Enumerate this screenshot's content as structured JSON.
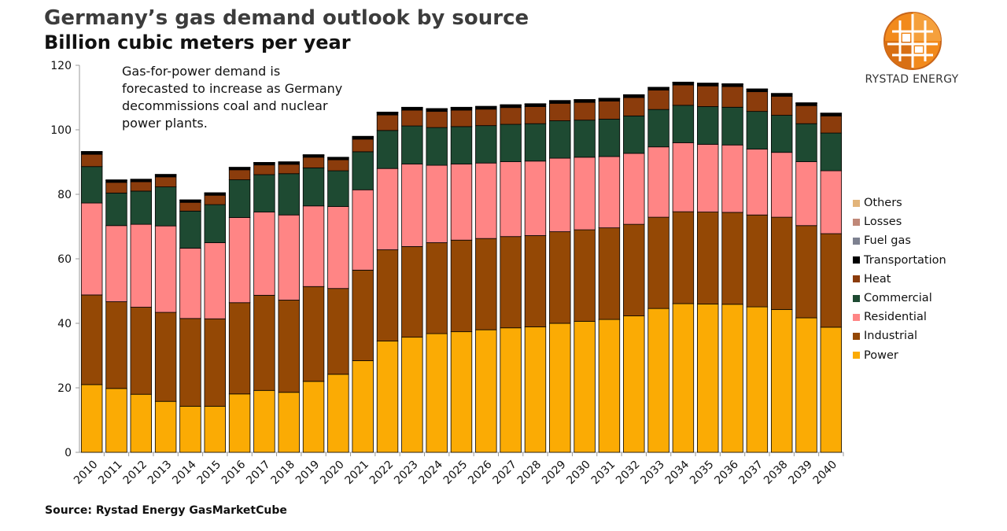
{
  "title": "Germany’s gas demand outlook by source",
  "subtitle": "Billion cubic meters per year",
  "annotation": "Gas-for-power demand is forecasted to increase as Germany decommissions coal and nuclear power plants.",
  "source": "Source: Rystad Energy GasMarketCube",
  "brand": {
    "name": "RYSTAD ENERGY",
    "logo_icon": "rystad-energy-logo-icon"
  },
  "colors": {
    "Power": "#fbab04",
    "Industrial": "#944805",
    "Residential": "#ff8585",
    "Commercial": "#1e4a32",
    "Heat": "#8b3c0c",
    "Transportation": "#000000",
    "Fuel gas": "#7d8190",
    "Losses": "#c08878",
    "Others": "#e2b47a"
  },
  "chart_data": {
    "type": "bar",
    "stacked": true,
    "categories": [
      "2010",
      "2011",
      "2012",
      "2013",
      "2014",
      "2015",
      "2016",
      "2017",
      "2018",
      "2019",
      "2020",
      "2021",
      "2022",
      "2023",
      "2024",
      "2025",
      "2026",
      "2027",
      "2028",
      "2029",
      "2030",
      "2031",
      "2032",
      "2033",
      "2034",
      "2035",
      "2036",
      "2037",
      "2038",
      "2039",
      "2040"
    ],
    "ylim": [
      0,
      120
    ],
    "yticks": [
      0,
      20,
      40,
      60,
      80,
      100,
      120
    ],
    "grid": false,
    "legend_position": "right",
    "series": [
      {
        "name": "Power",
        "values": [
          21.0,
          19.8,
          18.0,
          15.8,
          14.3,
          14.3,
          18.1,
          19.2,
          18.6,
          22.0,
          24.2,
          28.4,
          34.5,
          35.7,
          36.8,
          37.4,
          38.0,
          38.6,
          38.9,
          40.0,
          40.6,
          41.2,
          42.3,
          44.6,
          46.1,
          46.0,
          45.9,
          45.1,
          44.3,
          41.7,
          38.8
        ]
      },
      {
        "name": "Industrial",
        "values": [
          27.8,
          26.9,
          27.0,
          27.6,
          27.2,
          27.1,
          28.3,
          29.5,
          28.6,
          29.4,
          26.6,
          28.1,
          28.3,
          28.1,
          28.2,
          28.4,
          28.3,
          28.3,
          28.3,
          28.4,
          28.4,
          28.4,
          28.4,
          28.3,
          28.5,
          28.5,
          28.5,
          28.5,
          28.6,
          28.6,
          29.0
        ]
      },
      {
        "name": "Residential",
        "values": [
          28.5,
          23.6,
          25.7,
          26.8,
          21.8,
          23.6,
          26.4,
          25.8,
          26.4,
          25.0,
          25.4,
          24.9,
          25.2,
          25.6,
          24.0,
          23.6,
          23.4,
          23.2,
          23.1,
          22.8,
          22.5,
          22.1,
          22.0,
          21.8,
          21.4,
          21.0,
          20.9,
          20.4,
          20.1,
          19.8,
          19.5
        ]
      },
      {
        "name": "Commercial",
        "values": [
          11.3,
          10.1,
          10.3,
          12.1,
          11.5,
          11.8,
          11.7,
          11.6,
          12.8,
          11.8,
          11.1,
          11.8,
          11.8,
          11.8,
          11.7,
          11.6,
          11.6,
          11.6,
          11.6,
          11.6,
          11.5,
          11.6,
          11.6,
          11.6,
          11.6,
          11.7,
          11.7,
          11.7,
          11.5,
          11.8,
          11.7
        ]
      },
      {
        "name": "Heat",
        "values": [
          3.8,
          3.3,
          2.9,
          3.1,
          2.7,
          2.9,
          3.1,
          3.0,
          2.9,
          3.3,
          3.4,
          3.9,
          4.8,
          4.9,
          5.0,
          5.1,
          5.1,
          5.2,
          5.3,
          5.4,
          5.5,
          5.6,
          5.7,
          6.0,
          6.3,
          6.4,
          6.4,
          6.1,
          5.9,
          5.6,
          5.3
        ]
      },
      {
        "name": "Transportation",
        "values": [
          0.6,
          0.5,
          0.5,
          0.5,
          0.5,
          0.5,
          0.5,
          0.5,
          0.5,
          0.5,
          0.5,
          0.6,
          0.6,
          0.6,
          0.6,
          0.6,
          0.6,
          0.6,
          0.6,
          0.6,
          0.6,
          0.6,
          0.6,
          0.6,
          0.6,
          0.6,
          0.6,
          0.6,
          0.6,
          0.6,
          0.6
        ]
      },
      {
        "name": "Fuel gas",
        "values": [
          0.1,
          0.1,
          0.1,
          0.1,
          0.1,
          0.1,
          0.1,
          0.1,
          0.1,
          0.1,
          0.1,
          0.1,
          0.1,
          0.1,
          0.1,
          0.1,
          0.1,
          0.1,
          0.1,
          0.1,
          0.1,
          0.1,
          0.1,
          0.1,
          0.1,
          0.1,
          0.1,
          0.1,
          0.1,
          0.1,
          0.1
        ]
      },
      {
        "name": "Losses",
        "values": [
          0.1,
          0.1,
          0.1,
          0.1,
          0.1,
          0.1,
          0.1,
          0.1,
          0.1,
          0.1,
          0.1,
          0.1,
          0.1,
          0.1,
          0.1,
          0.1,
          0.1,
          0.1,
          0.1,
          0.1,
          0.1,
          0.1,
          0.1,
          0.1,
          0.1,
          0.1,
          0.1,
          0.1,
          0.1,
          0.1,
          0.1
        ]
      },
      {
        "name": "Others",
        "values": [
          0.1,
          0.1,
          0.1,
          0.1,
          0.1,
          0.1,
          0.1,
          0.1,
          0.1,
          0.1,
          0.1,
          0.1,
          0.1,
          0.1,
          0.1,
          0.1,
          0.1,
          0.1,
          0.1,
          0.1,
          0.1,
          0.1,
          0.1,
          0.1,
          0.1,
          0.1,
          0.1,
          0.1,
          0.1,
          0.1,
          0.1
        ]
      }
    ],
    "legend_order": [
      "Others",
      "Losses",
      "Fuel gas",
      "Transportation",
      "Heat",
      "Commercial",
      "Residential",
      "Industrial",
      "Power"
    ]
  }
}
